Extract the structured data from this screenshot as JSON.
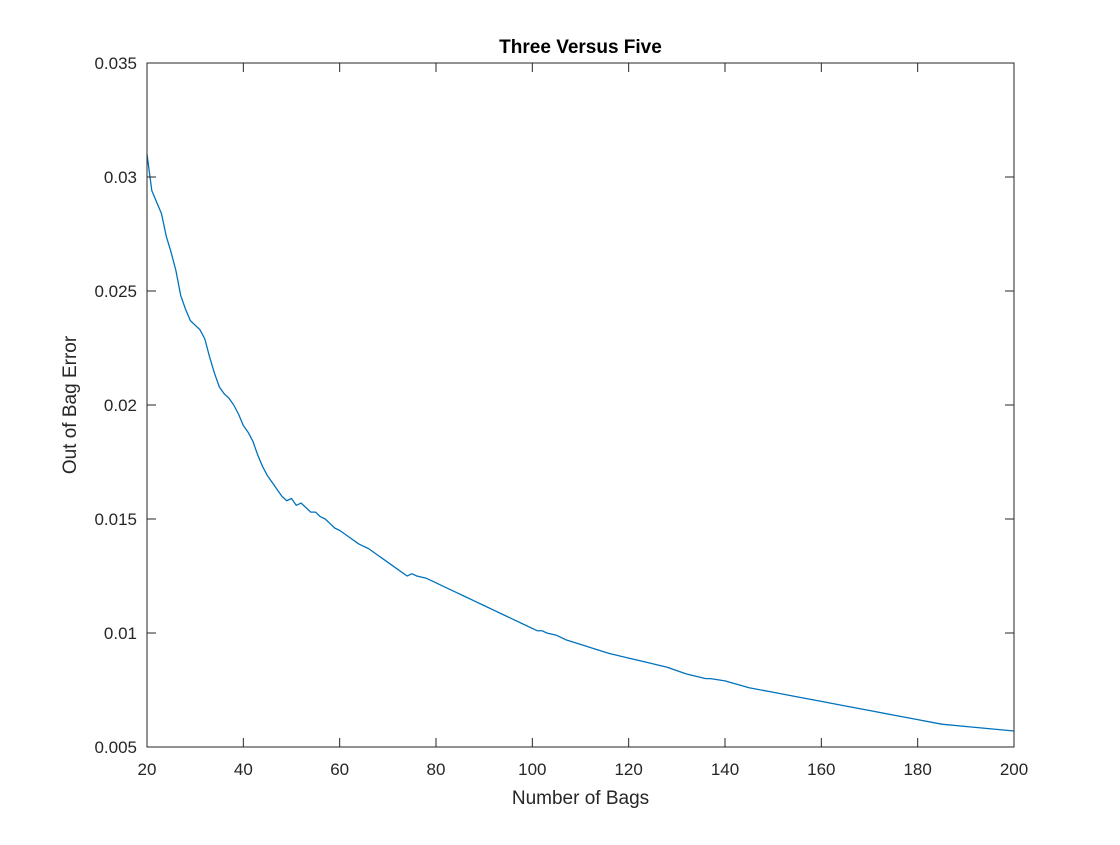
{
  "chart_data": {
    "type": "line",
    "title": "Three Versus Five",
    "xlabel": "Number of Bags",
    "ylabel": "Out of Bag Error",
    "xlim": [
      20,
      200
    ],
    "ylim": [
      0.005,
      0.035
    ],
    "x_ticks": [
      20,
      40,
      60,
      80,
      100,
      120,
      140,
      160,
      180,
      200
    ],
    "x_tick_labels": [
      "20",
      "40",
      "60",
      "80",
      "100",
      "120",
      "140",
      "160",
      "180",
      "200"
    ],
    "y_ticks": [
      0.005,
      0.01,
      0.015,
      0.02,
      0.025,
      0.03,
      0.035
    ],
    "y_tick_labels": [
      "0.005",
      "0.01",
      "0.015",
      "0.02",
      "0.025",
      "0.03",
      "0.035"
    ],
    "grid": false,
    "legend": "none",
    "line_color": "#0072BD",
    "series": [
      {
        "x": [
          20,
          21,
          22,
          23,
          24,
          25,
          26,
          27,
          28,
          29,
          30,
          31,
          32,
          33,
          34,
          35,
          36,
          37,
          38,
          39,
          40,
          41,
          42,
          43,
          44,
          45,
          46,
          47,
          48,
          49,
          50,
          51,
          52,
          53,
          54,
          55,
          56,
          57,
          58,
          59,
          60,
          62,
          64,
          66,
          68,
          70,
          72,
          74,
          75,
          76,
          78,
          80,
          82,
          84,
          86,
          88,
          90,
          92,
          94,
          96,
          98,
          100,
          101,
          102,
          103,
          105,
          107,
          110,
          113,
          116,
          120,
          124,
          128,
          132,
          136,
          137,
          140,
          145,
          150,
          155,
          160,
          165,
          170,
          175,
          180,
          185,
          190,
          195,
          200
        ],
        "y": [
          0.031,
          0.0294,
          0.0289,
          0.0284,
          0.0274,
          0.0267,
          0.0259,
          0.0248,
          0.0242,
          0.0237,
          0.0235,
          0.0233,
          0.0229,
          0.0221,
          0.0214,
          0.0208,
          0.0205,
          0.0203,
          0.02,
          0.0196,
          0.0191,
          0.0188,
          0.0184,
          0.0178,
          0.0173,
          0.0169,
          0.0166,
          0.0163,
          0.016,
          0.0158,
          0.0159,
          0.0156,
          0.0157,
          0.0155,
          0.0153,
          0.0153,
          0.0151,
          0.015,
          0.0148,
          0.0146,
          0.0145,
          0.0142,
          0.0139,
          0.0137,
          0.0134,
          0.0131,
          0.0128,
          0.0125,
          0.0126,
          0.0125,
          0.0124,
          0.0122,
          0.012,
          0.0118,
          0.0116,
          0.0114,
          0.0112,
          0.011,
          0.0108,
          0.0106,
          0.0104,
          0.0102,
          0.0101,
          0.0101,
          0.01,
          0.0099,
          0.0097,
          0.0095,
          0.0093,
          0.0091,
          0.0089,
          0.0087,
          0.0085,
          0.0082,
          0.008,
          0.008,
          0.0079,
          0.0076,
          0.0074,
          0.0072,
          0.007,
          0.0068,
          0.0066,
          0.0064,
          0.0062,
          0.006,
          0.0059,
          0.0058,
          0.0057
        ]
      }
    ]
  }
}
